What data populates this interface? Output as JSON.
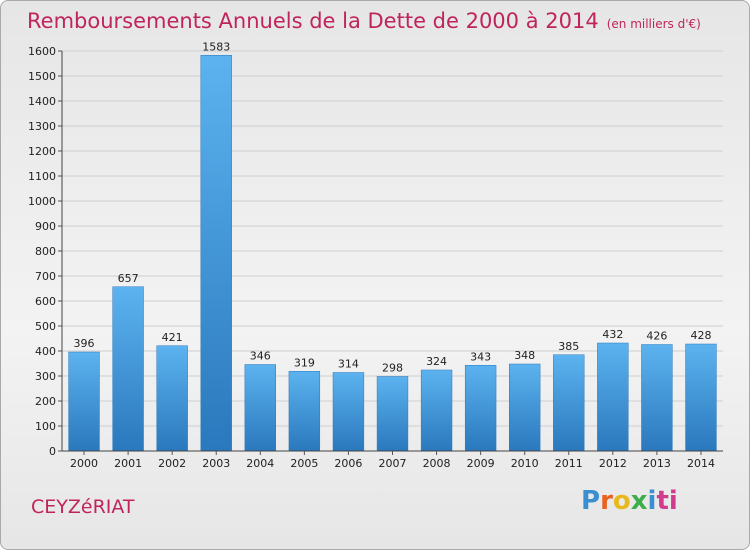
{
  "title": "Remboursements Annuels de la Dette de 2000 à 2014",
  "unit": "(en milliers d'€)",
  "commune": "CEYZéRIAT",
  "logo": [
    "P",
    "r",
    "o",
    "x",
    "i",
    "ti"
  ],
  "chart_data": {
    "type": "bar",
    "categories": [
      "2000",
      "2001",
      "2002",
      "2003",
      "2004",
      "2005",
      "2006",
      "2007",
      "2008",
      "2009",
      "2010",
      "2011",
      "2012",
      "2013",
      "2014"
    ],
    "values": [
      396,
      657,
      421,
      1583,
      346,
      319,
      314,
      298,
      324,
      343,
      348,
      385,
      432,
      426,
      428
    ],
    "ylim": [
      0,
      1600
    ],
    "yticks": [
      0,
      100,
      200,
      300,
      400,
      500,
      600,
      700,
      800,
      900,
      1000,
      1100,
      1200,
      1300,
      1400,
      1500,
      1600
    ],
    "grid": true,
    "bar_color": "#3b96dc",
    "title": "Remboursements Annuels de la Dette de 2000 à 2014",
    "xlabel": "",
    "ylabel": ""
  }
}
